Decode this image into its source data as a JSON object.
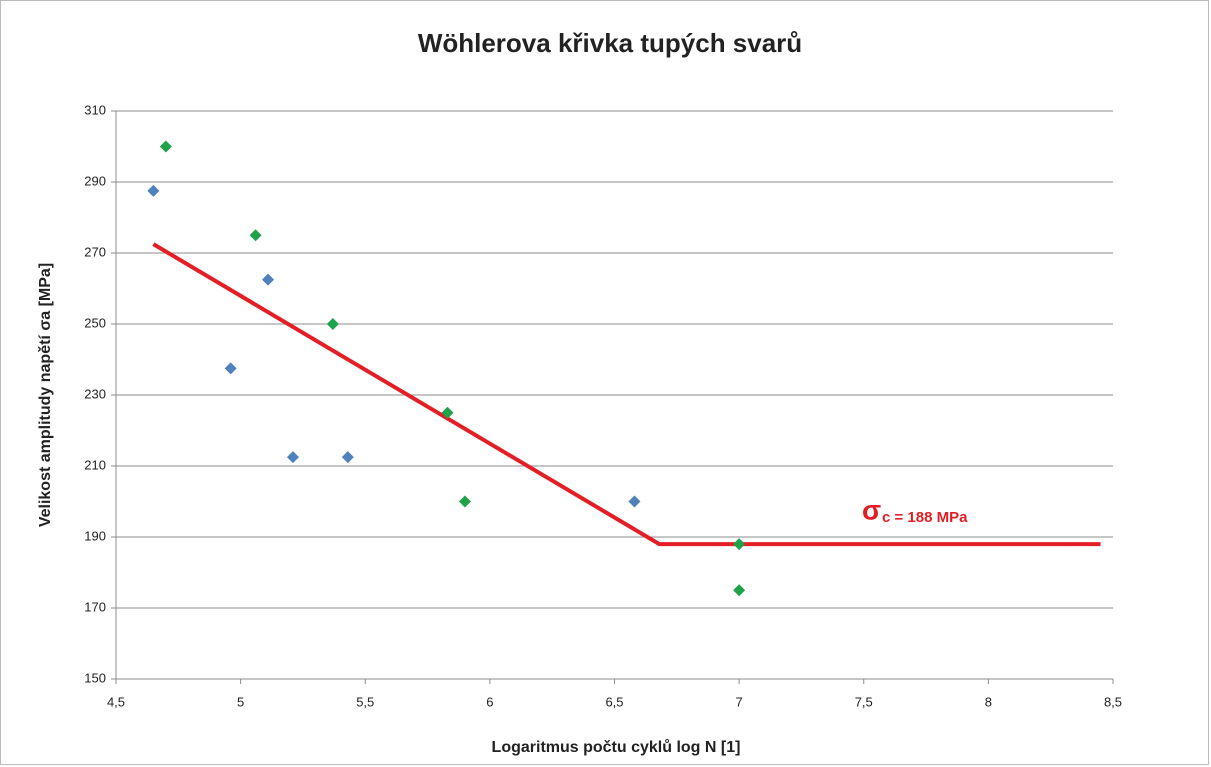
{
  "chart_data": {
    "type": "scatter",
    "title": "Wöhlerova křivka tupých svarů",
    "xlabel": "Logaritmus počtu cyklů  log N [1]",
    "ylabel": "Velikost amplitudy napětí  σa [MPa]",
    "xlim": [
      4.5,
      8.5
    ],
    "ylim": [
      150,
      310
    ],
    "xticks": [
      {
        "value": 4.5,
        "label": "4,5"
      },
      5,
      {
        "value": 5.5,
        "label": "5,5"
      },
      6,
      {
        "value": 6.5,
        "label": "6,5"
      },
      7,
      {
        "value": 7.5,
        "label": "7,5"
      },
      8,
      {
        "value": 8.5,
        "label": "8,5"
      }
    ],
    "yticks": [
      150,
      170,
      190,
      210,
      230,
      250,
      270,
      290,
      310
    ],
    "grid": true,
    "series": [
      {
        "type": "scatter",
        "marker": "diamond",
        "color": "#4f81bd",
        "x": [
          4.65,
          4.96,
          5.11,
          5.21,
          5.43,
          6.58
        ],
        "values": [
          287.5,
          237.5,
          262.5,
          212.5,
          212.5,
          200
        ]
      },
      {
        "type": "scatter",
        "marker": "diamond",
        "color": "#1fa24a",
        "x": [
          4.7,
          5.06,
          5.37,
          5.83,
          5.9,
          7.0,
          7.0
        ],
        "values": [
          300,
          275,
          250,
          225,
          200,
          188,
          175
        ]
      },
      {
        "type": "line",
        "color": "#e31e24",
        "x": [
          4.65,
          6.68,
          8.45
        ],
        "values": [
          272.5,
          188,
          188
        ]
      }
    ],
    "annotation": {
      "symbol": "σ",
      "text": "c = 188 MPa",
      "color": "#e31e24"
    }
  }
}
